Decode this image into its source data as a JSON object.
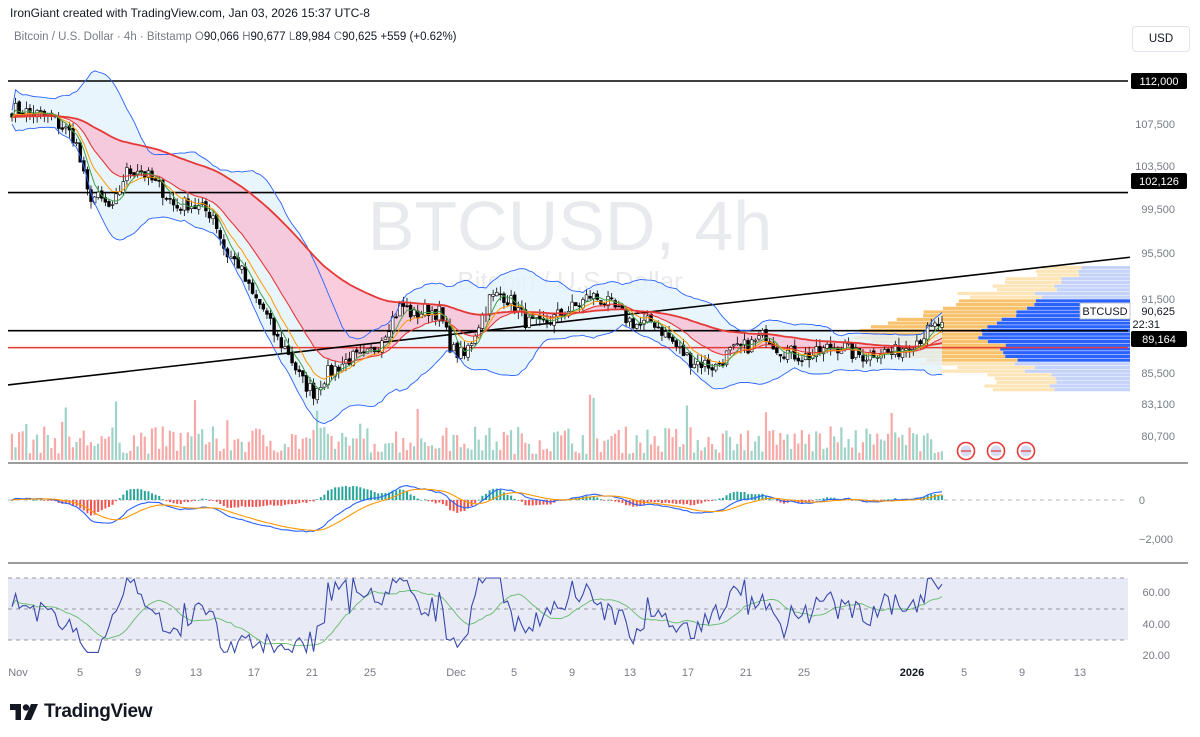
{
  "header": {
    "created_by": "IronGiant created with TradingView.com, Jan 03, 2026 15:37 UTC-8",
    "symbol": "Bitcoin / U.S. Dollar · 4h · Bitstamp",
    "o_label": "O",
    "open": "90,066",
    "h_label": "H",
    "high": "90,677",
    "l_label": "L",
    "low": "89,984",
    "c_label": "C",
    "close": "90,625",
    "change": "+559 (+0.62%)",
    "currency": "USD"
  },
  "watermark": {
    "symbol": "BTCUSD, 4h",
    "name": "Bitcoin / U.S. Dollar"
  },
  "footer": {
    "brand": "TradingView"
  },
  "colors": {
    "up": "#089981",
    "down": "#f23645",
    "ma_red": "#e53935",
    "ma_orange": "#ff9800",
    "ma_green": "#43a047",
    "bb_blue": "#2962ff",
    "cloud_red": "#f8bbd0",
    "cloud_blue": "#e3f2fd",
    "rsi_band": "#e8eaf6",
    "vp_blue": "#2962ff",
    "vp_yellow": "#f7c26b"
  },
  "chart_data": {
    "type": "candlestick",
    "x_ticks": [
      "Nov",
      "5",
      "9",
      "13",
      "17",
      "21",
      "25",
      "Dec",
      "5",
      "9",
      "13",
      "17",
      "21",
      "25",
      "2026",
      "5",
      "9",
      "13"
    ],
    "y_ticks": [
      "107,500",
      "103,500",
      "99,500",
      "95,500",
      "91,500",
      "85,500",
      "83,100",
      "80,700"
    ],
    "price_labels": [
      {
        "value": 112000,
        "label": "112,000",
        "style": "black"
      },
      {
        "value": 102126,
        "label": "102,126",
        "style": "black"
      },
      {
        "value": 89164,
        "label": "89,164",
        "style": "black"
      },
      {
        "value": 90625,
        "label": "90,625",
        "style": "ticker"
      }
    ],
    "last_price": {
      "symbol": "BTCUSD",
      "value": "90,625",
      "countdown": "22:31"
    },
    "horizontal_lines": [
      {
        "value": 112000,
        "color": "#000000"
      },
      {
        "value": 102126,
        "color": "#000000"
      },
      {
        "value": 89900,
        "color": "#000000"
      },
      {
        "value": 88400,
        "color": "#e53935"
      }
    ],
    "trendline": {
      "from": {
        "x": 0,
        "value": 85100
      },
      "to": {
        "x": 1,
        "value": 96400
      }
    },
    "price_path": [
      [
        0,
        109500
      ],
      [
        3,
        108800
      ],
      [
        5,
        107000
      ],
      [
        6,
        102000
      ],
      [
        7,
        101500
      ],
      [
        8,
        100500
      ],
      [
        9,
        103800
      ],
      [
        10,
        104300
      ],
      [
        12,
        102300
      ],
      [
        13,
        100800
      ],
      [
        14,
        101200
      ],
      [
        16,
        100200
      ],
      [
        17,
        96800
      ],
      [
        18,
        95800
      ],
      [
        19,
        93200
      ],
      [
        20,
        91800
      ],
      [
        21,
        89300
      ],
      [
        22,
        88000
      ],
      [
        23,
        85500
      ],
      [
        24,
        84500
      ],
      [
        25,
        86000
      ],
      [
        26,
        86800
      ],
      [
        27,
        87500
      ],
      [
        28,
        87400
      ],
      [
        29,
        88500
      ],
      [
        30,
        90500
      ],
      [
        31,
        92200
      ],
      [
        32,
        91200
      ],
      [
        33,
        91800
      ],
      [
        34,
        91500
      ],
      [
        35,
        88200
      ],
      [
        36,
        87600
      ],
      [
        37,
        90200
      ],
      [
        38,
        92700
      ],
      [
        39,
        93200
      ],
      [
        40,
        92100
      ],
      [
        41,
        90600
      ],
      [
        42,
        90300
      ],
      [
        43,
        90900
      ],
      [
        44,
        91600
      ],
      [
        45,
        92100
      ],
      [
        46,
        93000
      ],
      [
        47,
        92600
      ],
      [
        48,
        91800
      ],
      [
        49,
        90900
      ],
      [
        50,
        90300
      ],
      [
        51,
        90800
      ],
      [
        52,
        89600
      ],
      [
        53,
        88300
      ],
      [
        54,
        87300
      ],
      [
        55,
        87000
      ],
      [
        56,
        86700
      ],
      [
        57,
        87900
      ],
      [
        58,
        88300
      ],
      [
        59,
        88800
      ],
      [
        60,
        89600
      ],
      [
        61,
        88300
      ],
      [
        62,
        87900
      ],
      [
        63,
        87600
      ],
      [
        64,
        87800
      ],
      [
        65,
        88400
      ],
      [
        66,
        88600
      ],
      [
        67,
        87800
      ],
      [
        68,
        87700
      ],
      [
        69,
        88200
      ],
      [
        70,
        87800
      ],
      [
        71,
        88500
      ],
      [
        72,
        89100
      ],
      [
        73,
        89900
      ],
      [
        74,
        90625
      ]
    ],
    "macd_zero_label": "0",
    "macd_ticks": [
      "−2,000"
    ],
    "rsi_ticks": [
      "60.00",
      "40.00",
      "20.00"
    ]
  }
}
